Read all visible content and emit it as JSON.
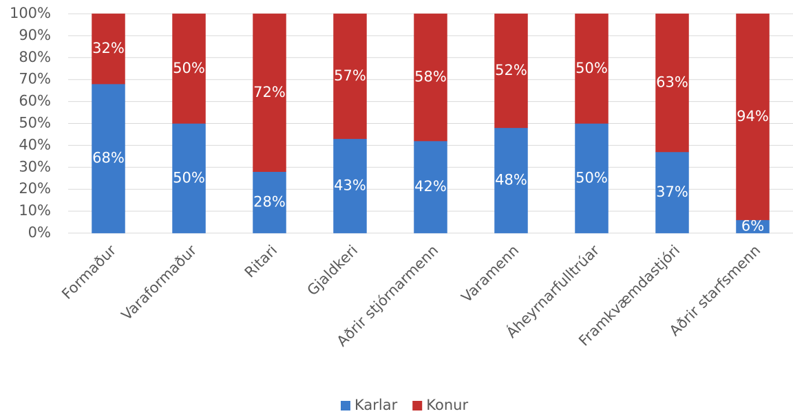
{
  "chart_data": {
    "type": "stacked_bar",
    "categories": [
      "Formaður",
      "Varaformaður",
      "Ritari",
      "Gjaldkeri",
      "Aðrir stjórnarmenn",
      "Varamenn",
      "Áheyrnarfulltrúar",
      "Framkvæmdastjóri",
      "Aðrir starfsmenn"
    ],
    "series": [
      {
        "name": "Karlar",
        "color": "#3c7bcb",
        "values": [
          68,
          50,
          28,
          43,
          42,
          48,
          50,
          37,
          6
        ],
        "value_labels": [
          "68%",
          "50%",
          "28%",
          "43%",
          "42%",
          "48%",
          "50%",
          "37%",
          "6%"
        ]
      },
      {
        "name": "Konur",
        "color": "#c3302e",
        "values": [
          32,
          50,
          72,
          57,
          58,
          52,
          50,
          63,
          94
        ],
        "value_labels": [
          "32%",
          "50%",
          "72%",
          "57%",
          "58%",
          "52%",
          "50%",
          "63%",
          "94%"
        ]
      }
    ],
    "ylim": [
      0,
      100
    ],
    "yticks": [
      {
        "value": 0,
        "label": "0%"
      },
      {
        "value": 10,
        "label": "10%"
      },
      {
        "value": 20,
        "label": "20%"
      },
      {
        "value": 30,
        "label": "30%"
      },
      {
        "value": 40,
        "label": "40%"
      },
      {
        "value": 50,
        "label": "50%"
      },
      {
        "value": 60,
        "label": "60%"
      },
      {
        "value": 70,
        "label": "70%"
      },
      {
        "value": 80,
        "label": "80%"
      },
      {
        "value": 90,
        "label": "90%"
      },
      {
        "value": 100,
        "label": "100%"
      }
    ],
    "grid": true,
    "legend": "bottom"
  }
}
